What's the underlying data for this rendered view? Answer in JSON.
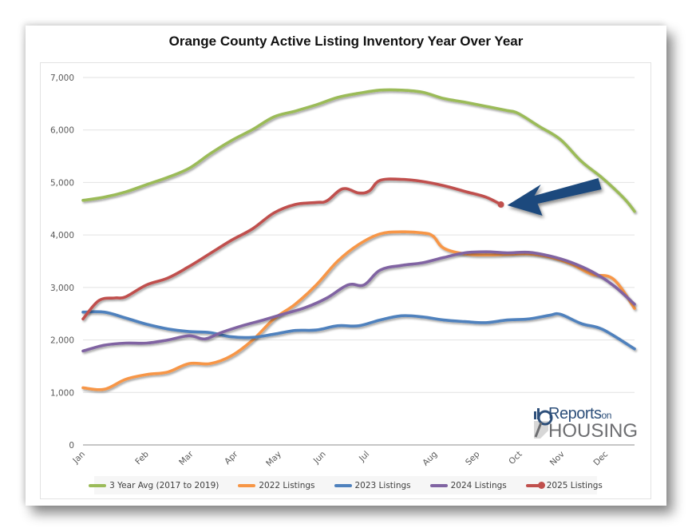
{
  "chart_data": {
    "type": "line",
    "title": "Orange County Active Listing Inventory Year Over Year",
    "xlabel": "",
    "ylabel": "",
    "ylim": [
      0,
      7000
    ],
    "yticks": [
      0,
      1000,
      2000,
      3000,
      4000,
      5000,
      6000,
      7000
    ],
    "ytick_labels": [
      "0",
      "1,000",
      "2,000",
      "3,000",
      "4,000",
      "5,000",
      "6,000",
      "7,000"
    ],
    "x_unit": "week of year",
    "xlim": [
      0,
      52
    ],
    "categories": [
      "Jan",
      "Feb",
      "Mar",
      "Apr",
      "May",
      "Jun",
      "Jul",
      "Aug",
      "Sep",
      "Oct",
      "Nov",
      "Dec"
    ],
    "category_weeks": [
      0,
      6,
      10.2,
      14.4,
      18.5,
      22.7,
      26.8,
      33.2,
      37.2,
      41.2,
      45.2,
      49.3
    ],
    "grid": true,
    "legend_position": "bottom",
    "series": [
      {
        "name": "3 Year Avg (2017 to 2019)",
        "color": "#9bbb59",
        "x": [
          0,
          2,
          4,
          6,
          8,
          10,
          12,
          14,
          16,
          18,
          20,
          22,
          24,
          26,
          28,
          30,
          32,
          34,
          36,
          38,
          40,
          41,
          43,
          45,
          47,
          49,
          51,
          52
        ],
        "values": [
          4660,
          4720,
          4820,
          4960,
          5100,
          5270,
          5550,
          5800,
          6010,
          6250,
          6360,
          6480,
          6620,
          6700,
          6760,
          6760,
          6720,
          6600,
          6530,
          6450,
          6370,
          6320,
          6070,
          5820,
          5400,
          5080,
          4700,
          4450
        ]
      },
      {
        "name": "2022 Listings",
        "color": "#f79646",
        "x": [
          0,
          2,
          4,
          6,
          8,
          10,
          12,
          14,
          16,
          18,
          20,
          22,
          24,
          26,
          28,
          30,
          32,
          33,
          34,
          36,
          38,
          40,
          42,
          44,
          46,
          48,
          50,
          52
        ],
        "values": [
          1090,
          1060,
          1250,
          1340,
          1390,
          1550,
          1550,
          1700,
          2000,
          2400,
          2680,
          3050,
          3500,
          3820,
          4020,
          4060,
          4040,
          3980,
          3750,
          3640,
          3620,
          3630,
          3640,
          3580,
          3450,
          3250,
          3160,
          2600
        ]
      },
      {
        "name": "2023 Listings",
        "color": "#4f81bd",
        "x": [
          0,
          2,
          4,
          6,
          8,
          10,
          12,
          14,
          16,
          18,
          20,
          22,
          24,
          26,
          28,
          30,
          32,
          34,
          36,
          38,
          40,
          42,
          44,
          45,
          47,
          49,
          52
        ],
        "values": [
          2530,
          2530,
          2420,
          2300,
          2210,
          2160,
          2140,
          2060,
          2050,
          2110,
          2180,
          2190,
          2270,
          2270,
          2380,
          2460,
          2440,
          2380,
          2350,
          2330,
          2380,
          2400,
          2470,
          2490,
          2310,
          2200,
          1830
        ]
      },
      {
        "name": "2024 Listings",
        "color": "#8064a2",
        "x": [
          0,
          2,
          4,
          6,
          8,
          10,
          11.5,
          13,
          15,
          17,
          19,
          21,
          23,
          25,
          26.5,
          28,
          30,
          32,
          34,
          36,
          38,
          40,
          42,
          44,
          46,
          48,
          50,
          52
        ],
        "values": [
          1790,
          1900,
          1940,
          1940,
          2000,
          2080,
          2020,
          2140,
          2270,
          2380,
          2500,
          2620,
          2800,
          3050,
          3050,
          3330,
          3420,
          3470,
          3570,
          3660,
          3680,
          3660,
          3670,
          3600,
          3480,
          3300,
          3040,
          2680
        ]
      },
      {
        "name": "2025 Listings",
        "color": "#c0504d",
        "marker_last": true,
        "x": [
          0,
          1.5,
          3,
          4,
          6,
          8,
          10,
          12,
          14,
          16,
          18,
          20,
          22,
          23,
          24.5,
          26,
          27,
          28,
          30,
          32,
          34,
          36,
          38,
          39.4
        ],
        "values": [
          2400,
          2750,
          2800,
          2820,
          3050,
          3180,
          3400,
          3650,
          3900,
          4120,
          4420,
          4580,
          4620,
          4650,
          4880,
          4800,
          4840,
          5040,
          5060,
          5020,
          4940,
          4830,
          4720,
          4580
        ]
      }
    ],
    "annotations": [
      {
        "type": "arrow",
        "color": "#1f497d",
        "points_to": "2025 Listings latest value"
      }
    ]
  },
  "logo": {
    "line1": "Reports",
    "line1_small": "on",
    "line2": "HOUSING"
  }
}
